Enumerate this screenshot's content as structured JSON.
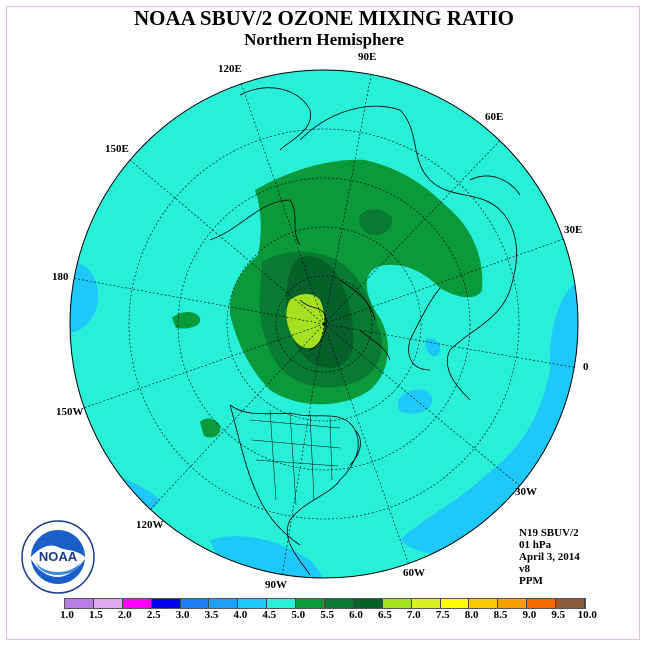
{
  "title": "NOAA SBUV/2 OZONE MIXING RATIO",
  "subtitle": "Northern Hemisphere",
  "longitude_labels": {
    "lon_90e": "90E",
    "lon_120e": "120E",
    "lon_60e": "60E",
    "lon_150e": "150E",
    "lon_30e": "30E",
    "lon_180": "180",
    "lon_0": "0",
    "lon_150w": "150W",
    "lon_30w": "30W",
    "lon_120w": "120W",
    "lon_60w": "60W",
    "lon_90w": "90W"
  },
  "info": {
    "satellite": "N19 SBUV/2",
    "level": "01 hPa",
    "date": "April 3, 2014",
    "version": "v8",
    "units": "PPM"
  },
  "colorbar": {
    "ticks": [
      "1.0",
      "1.5",
      "2.0",
      "2.5",
      "3.0",
      "3.5",
      "4.0",
      "4.5",
      "5.0",
      "5.5",
      "6.0",
      "6.5",
      "7.0",
      "7.5",
      "8.0",
      "8.5",
      "9.0",
      "9.5",
      "10.0"
    ],
    "colors": [
      "#b87ee8",
      "#dca8f0",
      "#ff00ff",
      "#0000ee",
      "#1e7ef8",
      "#1ea0f8",
      "#1ec8f8",
      "#28f0d8",
      "#0a9a3c",
      "#087a32",
      "#05602a",
      "#a6e020",
      "#d8f020",
      "#ffff00",
      "#f8c800",
      "#f8a000",
      "#f86800",
      "#f80000",
      "#8b5a3c"
    ]
  },
  "map_colors": {
    "background": "#28f0d8",
    "light_blue": "#1ec8f8",
    "green_mid": "#0a9a3c",
    "green_dark": "#087a32",
    "green_darker": "#05602a",
    "yellow_green": "#a6e020"
  },
  "logo_text": "NOAA"
}
